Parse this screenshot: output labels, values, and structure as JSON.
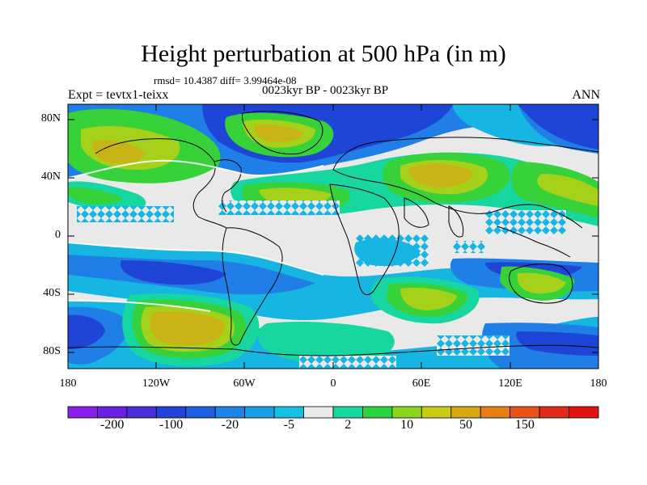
{
  "title": "Height perturbation at 500 hPa (in m)",
  "stats": "rmsd= 10.4387  diff= 3.99464e-08",
  "experiment": "Expt = tevtx1-teixx",
  "period": "0023kyr BP - 0023kyr BP",
  "season": "ANN",
  "lat_ticks": [
    "80N",
    "40N",
    "0",
    "40S",
    "80S"
  ],
  "lon_ticks": [
    "180",
    "120W",
    "60W",
    "0",
    "60E",
    "120E",
    "180"
  ],
  "colorbar": {
    "colors": [
      "#8a1fe6",
      "#6a22e0",
      "#4a2fd6",
      "#2243d6",
      "#1d5fdc",
      "#1f82e6",
      "#189fe6",
      "#17bfe2",
      "#e9e9e9",
      "#17d6a0",
      "#2ed23e",
      "#8bd41f",
      "#c7cc17",
      "#d9a616",
      "#e57f15",
      "#e8531a",
      "#e02a1c",
      "#e01414"
    ],
    "labels": [
      "-200",
      "-100",
      "-20",
      "-5",
      "2",
      "10",
      "50",
      "150"
    ]
  },
  "field_colors": {
    "blue_dark": "#1f45d6",
    "blue": "#1f7fe6",
    "blue_light": "#17b5e2",
    "neutral": "#e9e9e9",
    "teal": "#17d6a0",
    "green": "#37d23a",
    "yellowgreen": "#a6d11a",
    "olive": "#c8b417"
  }
}
